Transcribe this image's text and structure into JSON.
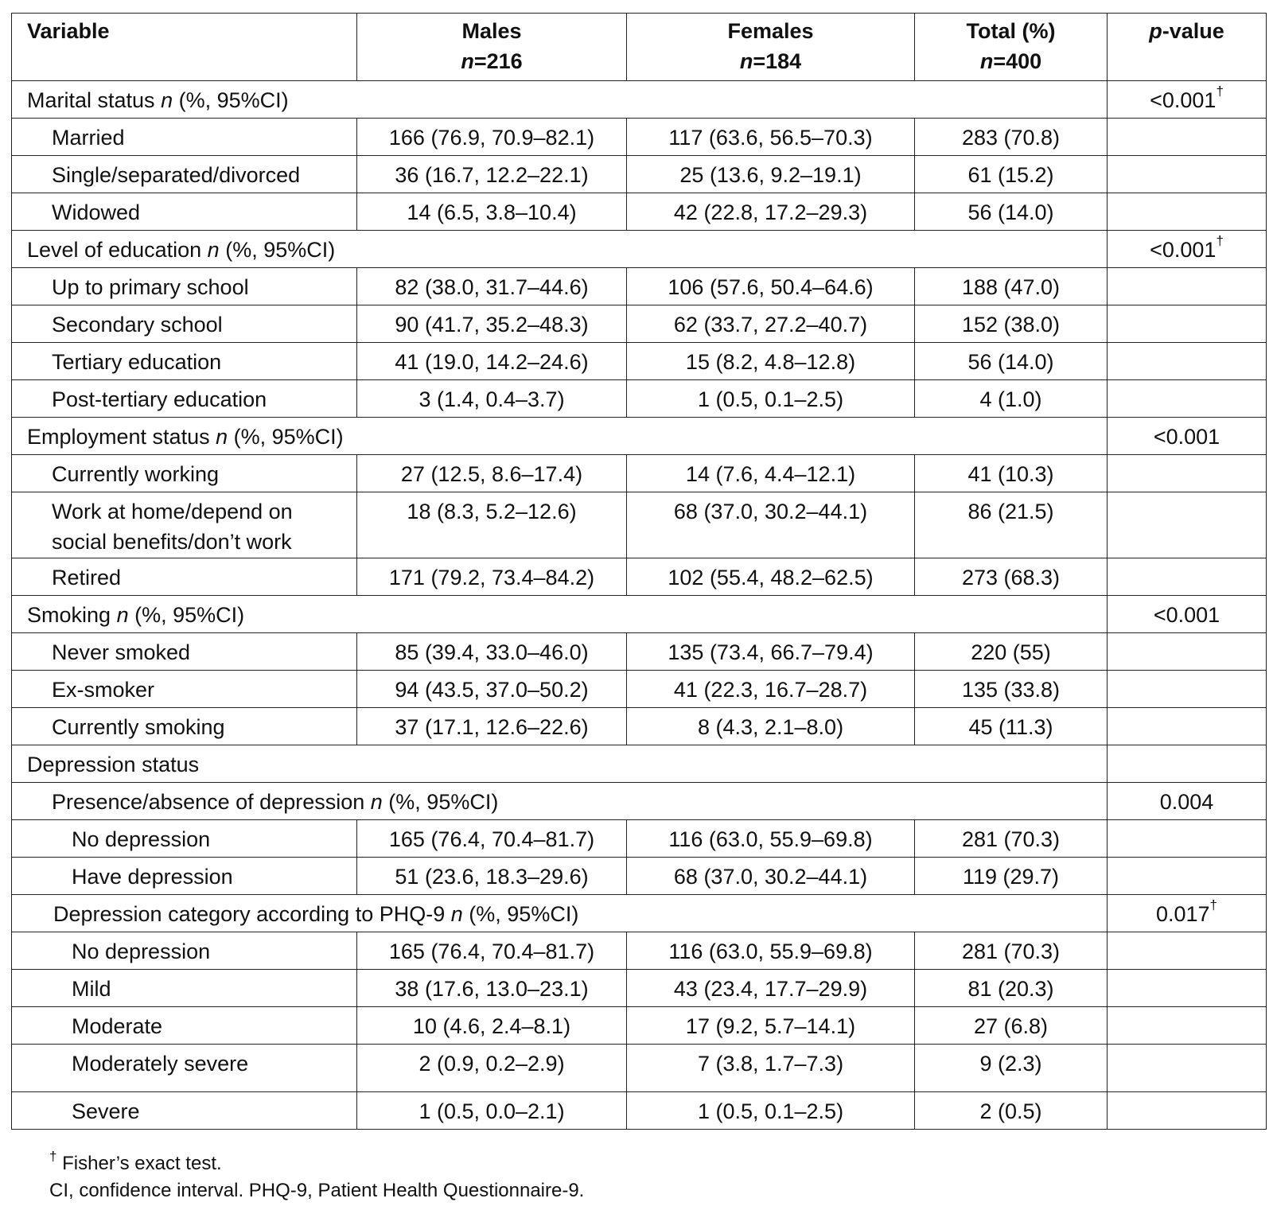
{
  "header": {
    "variable": "Variable",
    "males": "Males",
    "males_n": "=216",
    "females": "Females",
    "females_n": "=184",
    "total": "Total (%)",
    "total_n": "=400",
    "p_italic": "p",
    "p_rest": "-value",
    "n_italic": "n"
  },
  "sections": {
    "marital": {
      "pre": "Marital status ",
      "n": "n",
      "post": " (%, 95%CI)",
      "p": "<0.001",
      "dagger": "†"
    },
    "education": {
      "pre": "Level of education ",
      "n": "n",
      "post": " (%, 95%CI)",
      "p": "<0.001",
      "dagger": "†"
    },
    "employment": {
      "pre": "Employment status ",
      "n": "n",
      "post": " (%, 95%CI)",
      "p": "<0.001"
    },
    "smoking": {
      "pre": "Smoking ",
      "n": "n",
      "post": " (%, 95%CI)",
      "p": "<0.001"
    },
    "depression": {
      "label": "Depression status"
    },
    "presence": {
      "pre": "Presence/absence of depression ",
      "n": "n",
      "post": " (%, 95%CI)",
      "p": "0.004"
    },
    "phq": {
      "pre": "Depression category according to PHQ-9 ",
      "n": "n",
      "post": " (%, 95%CI)",
      "p": "0.017",
      "dagger": "†"
    }
  },
  "rows": {
    "married": {
      "label": "Married",
      "males": "166 (76.9, 70.9–82.1)",
      "females": "117 (63.6, 56.5–70.3)",
      "total": "283 (70.8)"
    },
    "single": {
      "label": "Single/separated/divorced",
      "males": "36 (16.7, 12.2–22.1)",
      "females": "25 (13.6, 9.2–19.1)",
      "total": "61 (15.2)"
    },
    "widowed": {
      "label": "Widowed",
      "males": "14 (6.5, 3.8–10.4)",
      "females": "42 (22.8, 17.2–29.3)",
      "total": "56 (14.0)"
    },
    "primary": {
      "label": "Up to primary school",
      "males": "82 (38.0, 31.7–44.6)",
      "females": "106 (57.6, 50.4–64.6)",
      "total": "188 (47.0)"
    },
    "secondary": {
      "label": "Secondary school",
      "males": "90 (41.7, 35.2–48.3)",
      "females": "62 (33.7, 27.2–40.7)",
      "total": "152 (38.0)"
    },
    "tertiary": {
      "label": "Tertiary education",
      "males": "41 (19.0, 14.2–24.6)",
      "females": "15 (8.2, 4.8–12.8)",
      "total": "56 (14.0)"
    },
    "posttertiary": {
      "label": "Post-tertiary education",
      "males": "3 (1.4, 0.4–3.7)",
      "females": "1 (0.5, 0.1–2.5)",
      "total": "4 (1.0)"
    },
    "working": {
      "label": "Currently working",
      "males": "27 (12.5, 8.6–17.4)",
      "females": "14 (7.6, 4.4–12.1)",
      "total": "41 (10.3)"
    },
    "home": {
      "label_line1": "Work at home/depend on",
      "label_line2": "social benefits/don’t work",
      "males": "18 (8.3, 5.2–12.6)",
      "females": "68 (37.0, 30.2–44.1)",
      "total": "86 (21.5)"
    },
    "retired": {
      "label": "Retired",
      "males": "171 (79.2, 73.4–84.2)",
      "females": "102 (55.4, 48.2–62.5)",
      "total": "273 (68.3)"
    },
    "never": {
      "label": "Never smoked",
      "males": "85 (39.4, 33.0–46.0)",
      "females": "135 (73.4, 66.7–79.4)",
      "total": "220 (55)"
    },
    "ex": {
      "label": "Ex-smoker",
      "males": "94 (43.5, 37.0–50.2)",
      "females": "41 (22.3, 16.7–28.7)",
      "total": "135 (33.8)"
    },
    "current": {
      "label": "Currently smoking",
      "males": "37 (17.1, 12.6–22.6)",
      "females": "8 (4.3, 2.1–8.0)",
      "total": "45 (11.3)"
    },
    "nodep1": {
      "label": "No depression",
      "males": "165 (76.4, 70.4–81.7)",
      "females": "116 (63.0, 55.9–69.8)",
      "total": "281 (70.3)"
    },
    "havedep": {
      "label": "Have depression",
      "males": "51 (23.6, 18.3–29.6)",
      "females": "68 (37.0, 30.2–44.1)",
      "total": "119 (29.7)"
    },
    "nodep2": {
      "label": "No depression",
      "males": "165 (76.4, 70.4–81.7)",
      "females": "116 (63.0, 55.9–69.8)",
      "total": "281 (70.3)"
    },
    "mild": {
      "label": "Mild",
      "males": "38 (17.6, 13.0–23.1)",
      "females": "43 (23.4, 17.7–29.9)",
      "total": "81 (20.3)"
    },
    "moderate": {
      "label": "Moderate",
      "males": "10 (4.6, 2.4–8.1)",
      "females": "17 (9.2, 5.7–14.1)",
      "total": "27 (6.8)"
    },
    "modsevere": {
      "label": "Moderately severe",
      "males": "2 (0.9, 0.2–2.9)",
      "females": "7 (3.8, 1.7–7.3)",
      "total": "9 (2.3)"
    },
    "severe": {
      "label": "Severe",
      "males": "1 (0.5, 0.0–2.1)",
      "females": "1 (0.5, 0.1–2.5)",
      "total": "2 (0.5)"
    }
  },
  "footnotes": {
    "dagger": "†",
    "fisher": " Fisher’s exact test.",
    "abbrev": "CI, confidence interval. PHQ-9, Patient Health Questionnaire-9."
  }
}
